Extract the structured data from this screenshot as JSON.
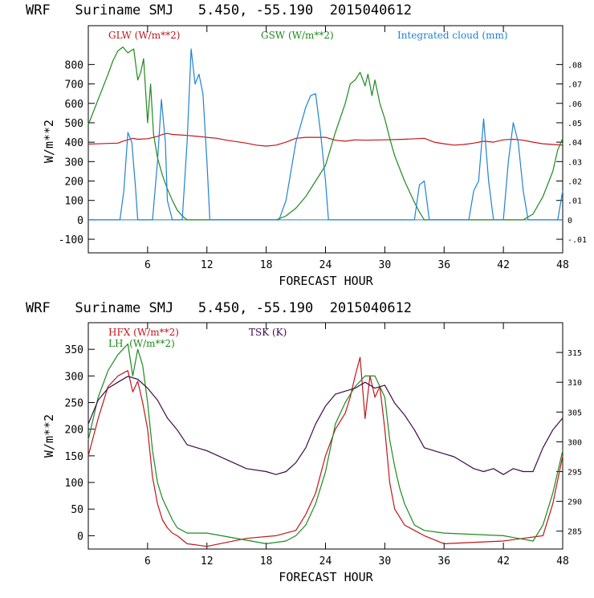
{
  "chart_data": [
    {
      "type": "line",
      "title": "WRF   Suriname SMJ   5.450, -55.190  2015040612",
      "xlabel": "FORECAST HOUR",
      "ylabel": "W/m**2",
      "xlim": [
        0,
        48
      ],
      "ylim": [
        -170,
        1000
      ],
      "y2lim": [
        -0.017,
        0.1
      ],
      "xticks": [
        6,
        12,
        18,
        24,
        30,
        36,
        42,
        48
      ],
      "xtick_labels": [
        "6",
        "12",
        "18",
        "24",
        "30",
        "36",
        "42",
        "48"
      ],
      "yticks": [
        -100,
        0,
        100,
        200,
        300,
        400,
        500,
        600,
        700,
        800
      ],
      "ytick_labels": [
        "-100",
        "0",
        "100",
        "200",
        "300",
        "400",
        "500",
        "600",
        "700",
        "800"
      ],
      "y2ticks": [
        -0.01,
        0,
        0.01,
        0.02,
        0.03,
        0.04,
        0.05,
        0.06,
        0.07,
        0.08
      ],
      "y2tick_labels": [
        "-.01",
        "0",
        ".01",
        ".02",
        ".03",
        ".04",
        ".05",
        ".06",
        ".07",
        ".08"
      ],
      "series": [
        {
          "name": "GLW (W/m**2)",
          "color": "#c0161c",
          "axis": "left",
          "x": [
            0,
            3,
            3.5,
            4,
            4.5,
            5,
            6,
            7,
            7.5,
            8,
            8.5,
            9,
            10,
            11,
            12,
            13,
            14,
            16,
            17,
            18,
            19,
            20,
            21,
            22,
            24,
            25,
            26,
            27,
            28,
            30,
            32,
            34,
            35,
            36,
            37,
            38,
            39,
            40,
            41,
            42,
            43,
            44,
            45,
            46,
            47,
            48
          ],
          "y": [
            390,
            395,
            405,
            412,
            420,
            415,
            418,
            430,
            440,
            445,
            440,
            438,
            435,
            430,
            425,
            420,
            410,
            395,
            385,
            380,
            385,
            400,
            420,
            425,
            425,
            410,
            405,
            412,
            410,
            412,
            415,
            420,
            400,
            392,
            385,
            388,
            395,
            405,
            400,
            412,
            415,
            410,
            400,
            392,
            388,
            385
          ]
        },
        {
          "name": "GSW (W/m**2)",
          "color": "#1e8a1e",
          "axis": "left",
          "x": [
            0,
            1,
            2,
            2.5,
            3,
            3.5,
            4,
            4.3,
            4.6,
            5,
            5.3,
            5.6,
            6,
            6.3,
            6.6,
            7,
            7.5,
            8,
            8.5,
            9,
            9.5,
            10,
            12,
            19,
            20,
            21,
            22,
            23,
            24,
            25,
            26,
            26.5,
            27,
            27.5,
            28,
            28.3,
            28.7,
            29,
            29.5,
            30,
            30.5,
            31,
            32,
            33,
            33.5,
            34,
            36,
            44,
            45,
            46,
            47,
            47.5,
            48
          ],
          "y": [
            490,
            620,
            750,
            820,
            870,
            890,
            860,
            870,
            880,
            720,
            760,
            830,
            500,
            700,
            440,
            320,
            230,
            160,
            100,
            50,
            20,
            0,
            0,
            0,
            20,
            60,
            120,
            200,
            280,
            450,
            600,
            700,
            720,
            760,
            690,
            750,
            640,
            720,
            600,
            520,
            420,
            330,
            200,
            90,
            40,
            0,
            0,
            0,
            30,
            120,
            250,
            360,
            420
          ]
        },
        {
          "name": "Integrated cloud (mm)",
          "color": "#1f82d4",
          "axis": "right",
          "x": [
            0,
            3.2,
            3.6,
            4,
            4.4,
            4.8,
            5,
            6.5,
            7,
            7.4,
            7.8,
            8,
            8.5,
            9,
            9.5,
            10,
            10.4,
            10.8,
            11.2,
            11.6,
            12,
            12.3,
            12.6,
            19.3,
            20,
            21,
            22,
            22.5,
            23,
            23.5,
            24,
            24.3,
            33,
            33.5,
            34,
            34.5,
            38.5,
            39,
            39.5,
            40,
            40.5,
            41,
            42,
            42.5,
            43,
            43.5,
            44,
            44.5,
            47.5,
            48
          ],
          "y": [
            0,
            0,
            0.015,
            0.045,
            0.04,
            0.015,
            0,
            0,
            0.03,
            0.062,
            0.04,
            0.01,
            0,
            0,
            0,
            0.04,
            0.088,
            0.07,
            0.075,
            0.065,
            0.03,
            0,
            0,
            0,
            0.01,
            0.04,
            0.058,
            0.064,
            0.065,
            0.045,
            0.02,
            0,
            0,
            0.018,
            0.02,
            0,
            0,
            0.015,
            0.02,
            0.052,
            0.02,
            0,
            0,
            0.03,
            0.05,
            0.04,
            0.015,
            0,
            0,
            0.015
          ]
        }
      ]
    },
    {
      "type": "line",
      "title": "WRF   Suriname SMJ   5.450, -55.190  2015040612",
      "xlabel": "FORECAST HOUR",
      "ylabel": "W/m**2",
      "xlim": [
        0,
        48
      ],
      "ylim": [
        -25,
        400
      ],
      "y2lim": [
        282,
        320
      ],
      "xticks": [
        6,
        12,
        18,
        24,
        30,
        36,
        42,
        48
      ],
      "xtick_labels": [
        "6",
        "12",
        "18",
        "24",
        "30",
        "36",
        "42",
        "48"
      ],
      "yticks": [
        0,
        50,
        100,
        150,
        200,
        250,
        300,
        350
      ],
      "ytick_labels": [
        "0",
        "50",
        "100",
        "150",
        "200",
        "250",
        "300",
        "350"
      ],
      "y2ticks": [
        285,
        290,
        295,
        300,
        305,
        310,
        315
      ],
      "y2tick_labels": [
        "285",
        "290",
        "295",
        "300",
        "305",
        "310",
        "315"
      ],
      "series": [
        {
          "name": "HFX (W/m**2)",
          "color": "#c0161c",
          "axis": "left",
          "x": [
            0,
            1,
            2,
            3,
            4,
            4.5,
            5,
            5.5,
            6,
            6.5,
            7,
            7.5,
            8,
            8.5,
            9,
            10,
            12,
            16,
            19,
            20,
            21,
            22,
            23,
            24,
            25,
            26,
            26.5,
            27,
            27.5,
            28,
            28.5,
            29,
            29.5,
            30,
            30.5,
            31,
            32,
            33,
            34,
            36,
            42,
            46,
            47,
            48
          ],
          "y": [
            150,
            220,
            280,
            300,
            310,
            270,
            290,
            250,
            200,
            110,
            60,
            30,
            15,
            5,
            0,
            -15,
            -20,
            -5,
            0,
            5,
            10,
            40,
            80,
            150,
            200,
            230,
            260,
            300,
            335,
            220,
            300,
            260,
            280,
            200,
            100,
            50,
            20,
            10,
            0,
            -15,
            -10,
            0,
            60,
            150
          ]
        },
        {
          "name": "LH  (W/m**2)",
          "color": "#1e8a1e",
          "axis": "left",
          "x": [
            0,
            1,
            2,
            3,
            3.5,
            4,
            4.5,
            5,
            5.5,
            6,
            6.5,
            7,
            7.5,
            8,
            8.5,
            9,
            9.5,
            10,
            12,
            18,
            20,
            21,
            22,
            23,
            24,
            25,
            26,
            27,
            28,
            29,
            30,
            30.5,
            31,
            31.5,
            32,
            33,
            34,
            36,
            42,
            45,
            46,
            47,
            48
          ],
          "y": [
            180,
            260,
            310,
            340,
            350,
            360,
            300,
            350,
            320,
            250,
            160,
            100,
            70,
            50,
            30,
            15,
            10,
            5,
            5,
            -15,
            -10,
            0,
            20,
            60,
            120,
            210,
            250,
            280,
            300,
            300,
            260,
            180,
            130,
            90,
            60,
            20,
            10,
            5,
            0,
            -10,
            20,
            80,
            160
          ]
        },
        {
          "name": "TSK (K)",
          "color": "#3d0a4a",
          "axis": "right",
          "x": [
            0,
            1,
            2,
            3,
            4,
            5,
            6,
            7,
            8,
            9,
            10,
            11,
            12,
            14,
            16,
            18,
            19,
            20,
            21,
            22,
            23,
            24,
            25,
            26,
            27,
            28,
            29,
            30,
            31,
            32,
            33,
            34,
            35,
            36,
            37,
            38,
            39,
            40,
            41,
            42,
            43,
            44,
            45,
            46,
            47,
            48
          ],
          "y": [
            303,
            307,
            309,
            310,
            311,
            310.5,
            309,
            307,
            304,
            302,
            299.5,
            299,
            298.5,
            297,
            295.5,
            295,
            294.5,
            295,
            296.5,
            299,
            303,
            306,
            308,
            308.5,
            309,
            310,
            309,
            309.5,
            306.5,
            304.5,
            302,
            299,
            298.5,
            298,
            297.5,
            296.5,
            295.5,
            295,
            295.5,
            294.5,
            295.5,
            295,
            295,
            299,
            302,
            304
          ]
        }
      ]
    }
  ]
}
